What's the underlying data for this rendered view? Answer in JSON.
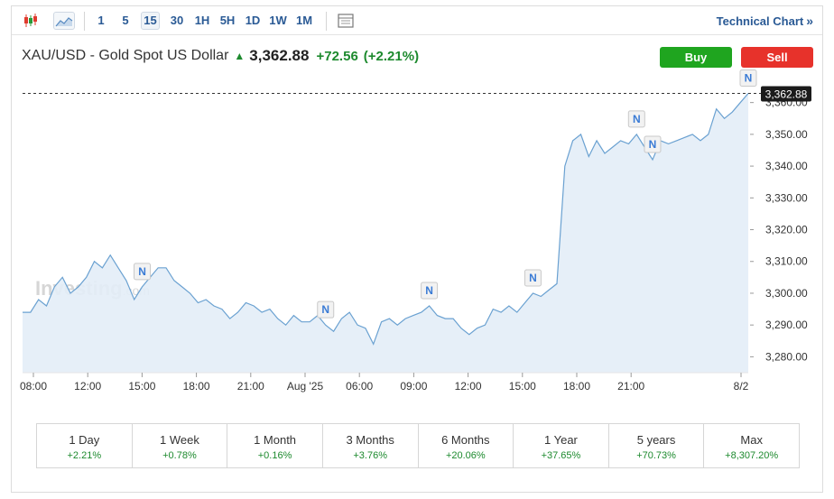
{
  "toolbar": {
    "timeframes": [
      "1",
      "5",
      "15",
      "30",
      "1H",
      "5H",
      "1D",
      "1W",
      "1M"
    ],
    "active_timeframe": "15",
    "technical_chart_label": "Technical Chart",
    "icons": [
      "candlestick-icon",
      "area-chart-icon",
      "table-icon",
      "double-chevron-right-icon"
    ]
  },
  "header": {
    "name": "XAU/USD - Gold Spot US Dollar",
    "price": "3,362.88",
    "change": "+72.56",
    "change_pct": "(+2.21%)"
  },
  "buttons": {
    "buy": "Buy",
    "sell": "Sell"
  },
  "watermark": {
    "brand": "Investing",
    "suffix": ".com"
  },
  "chart_data": {
    "type": "area",
    "x_tick_labels": [
      "08:00",
      "12:00",
      "15:00",
      "18:00",
      "21:00",
      "Aug '25",
      "06:00",
      "09:00",
      "12:00",
      "15:00",
      "18:00",
      "21:00",
      "8/2"
    ],
    "y_tick_labels": [
      "3,280.00",
      "3,290.00",
      "3,300.00",
      "3,310.00",
      "3,320.00",
      "3,330.00",
      "3,340.00",
      "3,350.00",
      "3,360.00"
    ],
    "ylim": [
      3275,
      3367
    ],
    "last_price_label": "3,362.88",
    "last_price": 3362.88,
    "news_marker_label": "N",
    "news_markers": [
      15,
      38,
      51,
      64,
      77,
      79,
      91
    ],
    "values": [
      3294,
      3294,
      3298,
      3296,
      3302,
      3305,
      3300,
      3302,
      3305,
      3310,
      3308,
      3312,
      3308,
      3304,
      3298,
      3302,
      3305,
      3308,
      3308,
      3304,
      3302,
      3300,
      3297,
      3298,
      3296,
      3295,
      3292,
      3294,
      3297,
      3296,
      3294,
      3295,
      3292,
      3290,
      3293,
      3291,
      3291,
      3293,
      3290,
      3288,
      3292,
      3294,
      3290,
      3289,
      3284,
      3291,
      3292,
      3290,
      3292,
      3293,
      3294,
      3296,
      3293,
      3292,
      3292,
      3289,
      3287,
      3289,
      3290,
      3295,
      3294,
      3296,
      3294,
      3297,
      3300,
      3299,
      3301,
      3303,
      3340,
      3348,
      3350,
      3343,
      3348,
      3344,
      3346,
      3348,
      3347,
      3350,
      3346,
      3342,
      3348,
      3347,
      3348,
      3349,
      3350,
      3348,
      3350,
      3358,
      3355,
      3357,
      3360,
      3362.88
    ],
    "color": "#6aa1d1",
    "fill": "#e3edf7"
  },
  "periods": [
    {
      "label": "1 Day",
      "value": "+2.21%"
    },
    {
      "label": "1 Week",
      "value": "+0.78%"
    },
    {
      "label": "1 Month",
      "value": "+0.16%"
    },
    {
      "label": "3 Months",
      "value": "+3.76%"
    },
    {
      "label": "6 Months",
      "value": "+20.06%"
    },
    {
      "label": "1 Year",
      "value": "+37.65%"
    },
    {
      "label": "5 years",
      "value": "+70.73%"
    },
    {
      "label": "Max",
      "value": "+8,307.20%"
    }
  ],
  "colors": {
    "accent": "#2a5a95",
    "up": "#1d8a2e",
    "buy": "#1fa51f",
    "sell": "#e7322b"
  }
}
